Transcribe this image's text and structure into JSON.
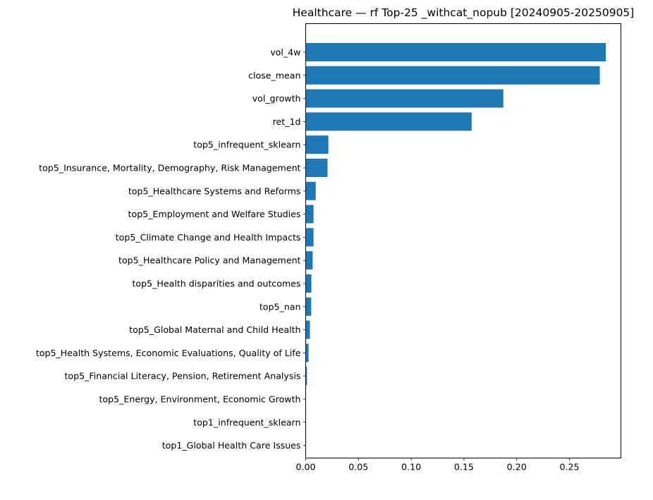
{
  "chart_data": {
    "type": "bar",
    "orientation": "horizontal",
    "title": "Healthcare — rf Top-25 _withcat_nopub [20240905-20250905]",
    "xlabel": "",
    "ylabel": "",
    "categories": [
      "vol_4w",
      "close_mean",
      "vol_growth",
      "ret_1d",
      "top5_infrequent_sklearn",
      "top5_Insurance, Mortality, Demography, Risk Management",
      "top5_Healthcare Systems and Reforms",
      "top5_Employment and Welfare Studies",
      "top5_Climate Change and Health Impacts",
      "top5_Healthcare Policy and Management",
      "top5_Health disparities and outcomes",
      "top5_nan",
      "top5_Global Maternal and Child Health",
      "top5_Health Systems, Economic Evaluations, Quality of Life",
      "top5_Financial Literacy, Pension, Retirement Analysis",
      "top5_Energy, Environment, Economic Growth",
      "top1_infrequent_sklearn",
      "top1_Global Health Care Issues"
    ],
    "values": [
      0.2845,
      0.2788,
      0.1873,
      0.1573,
      0.0215,
      0.0207,
      0.0095,
      0.0074,
      0.0074,
      0.0066,
      0.0054,
      0.0052,
      0.004,
      0.0027,
      0.0012,
      0.0003,
      0.0002,
      0.0001
    ],
    "x_ticks": [
      "0.00",
      "0.05",
      "0.10",
      "0.15",
      "0.20",
      "0.25"
    ],
    "xlim": [
      0,
      0.2988
    ],
    "grid": false,
    "legend": "none",
    "bar_color": "#1f77b4"
  }
}
